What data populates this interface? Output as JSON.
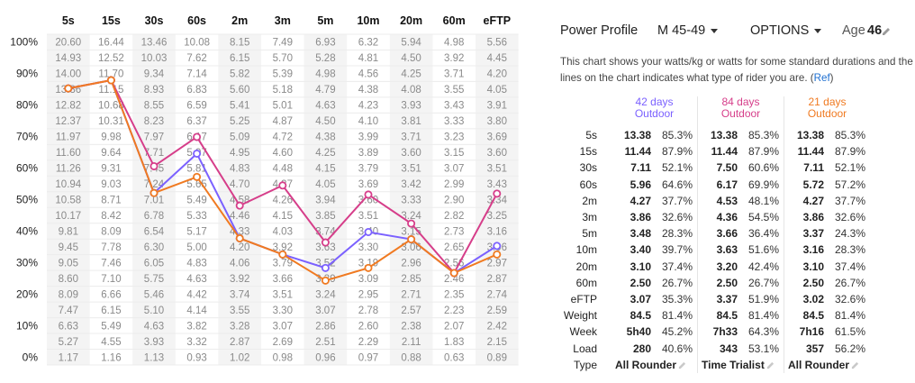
{
  "chart_data": {
    "type": "line",
    "title": "",
    "columns": [
      "5s",
      "15s",
      "30s",
      "60s",
      "2m",
      "3m",
      "5m",
      "10m",
      "20m",
      "60m",
      "eFTP"
    ],
    "percent_labels": [
      "100%",
      "90%",
      "80%",
      "70%",
      "60%",
      "50%",
      "40%",
      "30%",
      "20%",
      "10%",
      "0%"
    ],
    "grid_values": [
      [
        "20.60",
        "16.44",
        "13.46",
        "10.08",
        "8.15",
        "7.49",
        "6.93",
        "6.32",
        "5.94",
        "4.98",
        "5.56"
      ],
      [
        "14.93",
        "12.52",
        "10.03",
        "7.62",
        "6.15",
        "5.70",
        "5.28",
        "4.81",
        "4.50",
        "3.92",
        "4.45"
      ],
      [
        "14.00",
        "11.70",
        "9.34",
        "7.14",
        "5.82",
        "5.39",
        "4.98",
        "4.56",
        "4.25",
        "3.71",
        "4.20"
      ],
      [
        "13.36",
        "11.15",
        "8.93",
        "6.83",
        "5.60",
        "5.18",
        "4.79",
        "4.38",
        "4.08",
        "3.55",
        "4.05"
      ],
      [
        "12.82",
        "10.68",
        "8.55",
        "6.59",
        "5.41",
        "5.01",
        "4.63",
        "4.23",
        "3.93",
        "3.43",
        "3.91"
      ],
      [
        "12.37",
        "10.31",
        "8.23",
        "6.37",
        "5.25",
        "4.87",
        "4.50",
        "4.10",
        "3.81",
        "3.33",
        "3.80"
      ],
      [
        "11.97",
        "9.98",
        "7.97",
        "6.17",
        "5.09",
        "4.72",
        "4.38",
        "3.99",
        "3.71",
        "3.23",
        "3.69"
      ],
      [
        "11.60",
        "9.64",
        "7.71",
        "5.97",
        "4.95",
        "4.60",
        "4.25",
        "3.89",
        "3.60",
        "3.15",
        "3.60"
      ],
      [
        "11.26",
        "9.31",
        "7.45",
        "5.81",
        "4.83",
        "4.48",
        "4.15",
        "3.79",
        "3.51",
        "3.07",
        "3.51"
      ],
      [
        "10.94",
        "9.03",
        "7.24",
        "5.65",
        "4.70",
        "4.37",
        "4.05",
        "3.69",
        "3.42",
        "2.99",
        "3.43"
      ],
      [
        "10.58",
        "8.71",
        "7.01",
        "5.49",
        "4.58",
        "4.26",
        "3.94",
        "3.60",
        "3.33",
        "2.90",
        "3.34"
      ],
      [
        "10.17",
        "8.42",
        "6.78",
        "5.33",
        "4.46",
        "4.15",
        "3.85",
        "3.51",
        "3.24",
        "2.82",
        "3.25"
      ],
      [
        "9.81",
        "8.09",
        "6.54",
        "5.17",
        "4.33",
        "4.03",
        "3.74",
        "3.40",
        "3.15",
        "2.73",
        "3.16"
      ],
      [
        "9.45",
        "7.78",
        "6.30",
        "5.00",
        "4.20",
        "3.92",
        "3.63",
        "3.30",
        "3.06",
        "2.65",
        "3.06"
      ],
      [
        "9.05",
        "7.46",
        "6.05",
        "4.83",
        "4.06",
        "3.79",
        "3.52",
        "3.19",
        "2.96",
        "2.56",
        "2.97"
      ],
      [
        "8.60",
        "7.10",
        "5.75",
        "4.63",
        "3.92",
        "3.66",
        "3.39",
        "3.09",
        "2.85",
        "2.46",
        "2.87"
      ],
      [
        "8.09",
        "6.66",
        "5.46",
        "4.42",
        "3.74",
        "3.51",
        "3.24",
        "2.95",
        "2.71",
        "2.35",
        "2.74"
      ],
      [
        "7.47",
        "6.15",
        "5.10",
        "4.14",
        "3.55",
        "3.30",
        "3.07",
        "2.78",
        "2.57",
        "2.23",
        "2.59"
      ],
      [
        "6.63",
        "5.49",
        "4.63",
        "3.82",
        "3.28",
        "3.07",
        "2.86",
        "2.60",
        "2.38",
        "2.07",
        "2.42"
      ],
      [
        "5.27",
        "4.55",
        "3.93",
        "3.32",
        "2.87",
        "2.69",
        "2.51",
        "2.29",
        "2.11",
        "1.83",
        "2.15"
      ],
      [
        "1.17",
        "1.16",
        "1.13",
        "0.93",
        "1.02",
        "0.98",
        "0.96",
        "0.97",
        "0.88",
        "0.63",
        "0.89"
      ]
    ],
    "ylim": [
      0,
      100
    ],
    "series": [
      {
        "color": "#7b61ff",
        "values": [
          85.3,
          87.9,
          52.1,
          64.6,
          37.7,
          32.6,
          28.3,
          39.7,
          37.4,
          26.7,
          35.3
        ]
      },
      {
        "color": "#d63e8a",
        "values": [
          85.3,
          87.9,
          60.6,
          69.9,
          48.1,
          54.5,
          36.4,
          51.6,
          42.4,
          26.7,
          51.9
        ]
      },
      {
        "color": "#f07a21",
        "values": [
          85.3,
          87.9,
          52.1,
          57.2,
          37.7,
          32.6,
          24.3,
          28.3,
          37.4,
          26.7,
          32.6
        ]
      }
    ]
  },
  "header": {
    "title": "Power Profile",
    "category": "M 45-49",
    "options": "OPTIONS",
    "age_label": "Age",
    "age_value": "46"
  },
  "description": {
    "text": "This chart shows your watts/kg or watts for some standard durations and the lines on the chart indicates what type of rider you are. (",
    "link": "Ref",
    "close": ")"
  },
  "periods": [
    {
      "label": "42 days",
      "sub": "Outdoor",
      "color": "#7b61ff"
    },
    {
      "label": "84 days",
      "sub": "Outdoor",
      "color": "#d63e8a"
    },
    {
      "label": "21 days",
      "sub": "Outdoor",
      "color": "#f07a21"
    }
  ],
  "rows": [
    {
      "label": "5s",
      "v": [
        [
          "13.38",
          "85.3%"
        ],
        [
          "13.38",
          "85.3%"
        ],
        [
          "13.38",
          "85.3%"
        ]
      ]
    },
    {
      "label": "15s",
      "v": [
        [
          "11.44",
          "87.9%"
        ],
        [
          "11.44",
          "87.9%"
        ],
        [
          "11.44",
          "87.9%"
        ]
      ]
    },
    {
      "label": "30s",
      "v": [
        [
          "7.11",
          "52.1%"
        ],
        [
          "7.50",
          "60.6%"
        ],
        [
          "7.11",
          "52.1%"
        ]
      ]
    },
    {
      "label": "60s",
      "v": [
        [
          "5.96",
          "64.6%"
        ],
        [
          "6.17",
          "69.9%"
        ],
        [
          "5.72",
          "57.2%"
        ]
      ]
    },
    {
      "label": "2m",
      "v": [
        [
          "4.27",
          "37.7%"
        ],
        [
          "4.53",
          "48.1%"
        ],
        [
          "4.27",
          "37.7%"
        ]
      ]
    },
    {
      "label": "3m",
      "v": [
        [
          "3.86",
          "32.6%"
        ],
        [
          "4.36",
          "54.5%"
        ],
        [
          "3.86",
          "32.6%"
        ]
      ]
    },
    {
      "label": "5m",
      "v": [
        [
          "3.48",
          "28.3%"
        ],
        [
          "3.66",
          "36.4%"
        ],
        [
          "3.37",
          "24.3%"
        ]
      ]
    },
    {
      "label": "10m",
      "v": [
        [
          "3.40",
          "39.7%"
        ],
        [
          "3.63",
          "51.6%"
        ],
        [
          "3.16",
          "28.3%"
        ]
      ]
    },
    {
      "label": "20m",
      "v": [
        [
          "3.10",
          "37.4%"
        ],
        [
          "3.20",
          "42.4%"
        ],
        [
          "3.10",
          "37.4%"
        ]
      ]
    },
    {
      "label": "60m",
      "v": [
        [
          "2.50",
          "26.7%"
        ],
        [
          "2.50",
          "26.7%"
        ],
        [
          "2.50",
          "26.7%"
        ]
      ]
    },
    {
      "label": "eFTP",
      "v": [
        [
          "3.07",
          "35.3%"
        ],
        [
          "3.37",
          "51.9%"
        ],
        [
          "3.02",
          "32.6%"
        ]
      ]
    },
    {
      "label": "Weight",
      "v": [
        [
          "84.5",
          "81.4%"
        ],
        [
          "84.5",
          "81.4%"
        ],
        [
          "84.5",
          "81.4%"
        ]
      ]
    },
    {
      "label": "Week",
      "v": [
        [
          "5h40",
          "45.2%"
        ],
        [
          "7h33",
          "64.3%"
        ],
        [
          "7h16",
          "61.5%"
        ]
      ]
    },
    {
      "label": "Load",
      "v": [
        [
          "280",
          "40.6%"
        ],
        [
          "343",
          "53.1%"
        ],
        [
          "357",
          "56.2%"
        ]
      ]
    }
  ],
  "type_row": {
    "label": "Type",
    "values": [
      "All Rounder",
      "Time Trialist",
      "All Rounder"
    ]
  }
}
